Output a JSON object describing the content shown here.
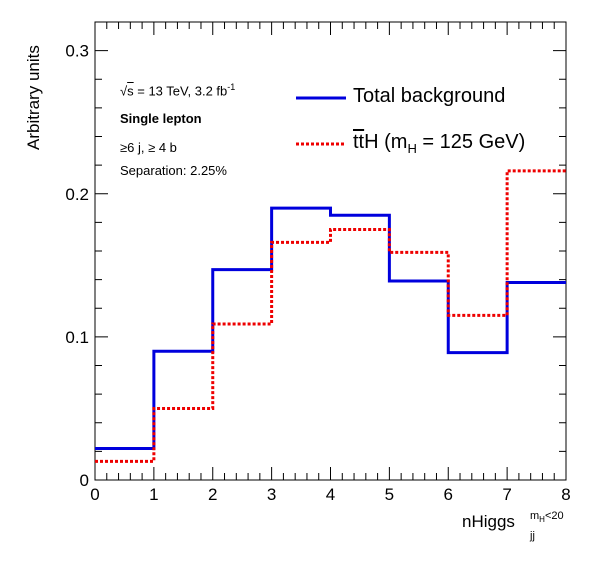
{
  "chart_data": {
    "type": "step",
    "xlabel": "nHiggs",
    "xlabel_superscript": "m_H<20",
    "xlabel_subscript": "jj",
    "ylabel": "Arbitrary units",
    "xlim": [
      0,
      8
    ],
    "ylim": [
      0,
      0.32
    ],
    "xticks": [
      "0",
      "1",
      "2",
      "3",
      "4",
      "5",
      "6",
      "7",
      "8"
    ],
    "yticks": [
      "0",
      "0.1",
      "0.2",
      "0.3"
    ],
    "bin_edges": [
      0,
      1,
      2,
      3,
      4,
      5,
      6,
      7,
      8
    ],
    "series": [
      {
        "name": "Total background",
        "color": "#0000dd",
        "style": "solid",
        "values": [
          0.022,
          0.09,
          0.147,
          0.19,
          0.185,
          0.139,
          0.089,
          0.138
        ]
      },
      {
        "name": "ttH (m_H = 125 GeV)",
        "color": "#ee0000",
        "style": "dotted",
        "values": [
          0.013,
          0.05,
          0.109,
          0.166,
          0.175,
          0.159,
          0.115,
          0.216
        ]
      }
    ],
    "grid": false,
    "legend_position": "top-right"
  },
  "annotations": {
    "sqrt_s": "s",
    "energy": " = 13 TeV, 3.2 fb",
    "lumi_exp": "-1",
    "channel": "Single lepton",
    "cuts": "≥6 j, ≥ 4 b",
    "separation": "Separation: 2.25%"
  },
  "legend": {
    "bkg_label": "Total background",
    "sig_tt": "tt",
    "sig_rest": "H (m",
    "sig_sub": "H",
    "sig_tail": " = 125 GeV)"
  },
  "xaxis": {
    "main": "nHiggs",
    "sup": "m",
    "sup_sub": "H",
    "sup_tail": "<20",
    "sub": "jj"
  }
}
